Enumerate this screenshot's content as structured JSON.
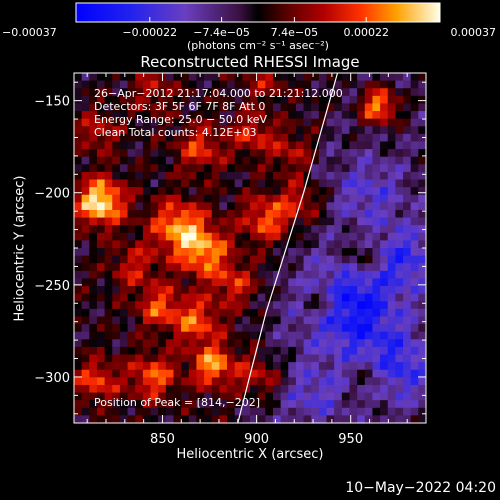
{
  "chart_data": {
    "type": "heatmap",
    "title": "Reconstructed RHESSI Image",
    "xlabel": "Heliocentric X (arcsec)",
    "ylabel": "Heliocentric Y (arcsec)",
    "xlim": [
      803,
      990
    ],
    "ylim": [
      -325,
      -135
    ],
    "xticks": [
      850,
      900,
      950
    ],
    "xtick_labels": [
      "850",
      "900",
      "950"
    ],
    "yticks": [
      -150,
      -200,
      -250,
      -300
    ],
    "ytick_labels": [
      "−150",
      "−200",
      "−250",
      "−300"
    ],
    "colorbar": {
      "range": [
        -0.00037,
        0.00037
      ],
      "ticks": [
        -0.00037,
        -0.00022,
        -7.4e-05,
        7.4e-05,
        0.00022,
        0.00037
      ],
      "tick_labels": [
        "−0.00037",
        "−0.00022",
        "−7.4e−05",
        "7.4e−05",
        "0.00022",
        "0.00037"
      ],
      "unit_label": "(photons cm⁻² s⁻¹ asec⁻²)"
    },
    "annotations": {
      "time_range": "26−Apr−2012 21:17:04.000 to 21:21:12.000",
      "detectors": "Detectors: 3F 5F 6F 7F 8F  Att 0",
      "energy": "Energy Range: 25.0 − 50.0 keV",
      "clean": "Clean    Total counts: 4.12E+03",
      "peak": "Position of Peak = [814,−202]"
    },
    "limb": [
      [
        943,
        -135
      ],
      [
        925,
        -200
      ],
      [
        905,
        -265
      ],
      [
        890,
        -325
      ]
    ],
    "peaks": [
      {
        "x": 817,
        "y": -205,
        "a": 1.0,
        "s": 9
      },
      {
        "x": 858,
        "y": -218,
        "a": 0.72,
        "s": 10
      },
      {
        "x": 872,
        "y": -232,
        "a": 0.72,
        "s": 10
      },
      {
        "x": 905,
        "y": -214,
        "a": 0.6,
        "s": 9
      },
      {
        "x": 925,
        "y": -205,
        "a": 0.45,
        "s": 8
      },
      {
        "x": 870,
        "y": -176,
        "a": 0.5,
        "s": 9
      },
      {
        "x": 898,
        "y": -168,
        "a": 0.45,
        "s": 8
      },
      {
        "x": 816,
        "y": -167,
        "a": 0.4,
        "s": 8
      },
      {
        "x": 845,
        "y": -145,
        "a": 0.35,
        "s": 8
      },
      {
        "x": 905,
        "y": -140,
        "a": 0.3,
        "s": 8
      },
      {
        "x": 965,
        "y": -153,
        "a": 0.85,
        "s": 7
      },
      {
        "x": 956,
        "y": -235,
        "a": 0.4,
        "s": 7
      },
      {
        "x": 935,
        "y": -260,
        "a": 0.45,
        "s": 7
      },
      {
        "x": 960,
        "y": -300,
        "a": 0.3,
        "s": 7
      },
      {
        "x": 868,
        "y": -270,
        "a": 0.6,
        "s": 9
      },
      {
        "x": 848,
        "y": -262,
        "a": 0.55,
        "s": 8
      },
      {
        "x": 845,
        "y": -300,
        "a": 0.6,
        "s": 9
      },
      {
        "x": 877,
        "y": -294,
        "a": 0.75,
        "s": 8
      },
      {
        "x": 815,
        "y": -302,
        "a": 0.55,
        "s": 8
      },
      {
        "x": 902,
        "y": -300,
        "a": 0.5,
        "s": 8
      },
      {
        "x": 835,
        "y": -240,
        "a": 0.4,
        "s": 9
      },
      {
        "x": 888,
        "y": -250,
        "a": 0.45,
        "s": 8
      },
      {
        "x": 918,
        "y": -178,
        "a": 0.35,
        "s": 8
      }
    ],
    "troughs": [
      {
        "x": 950,
        "y": -262,
        "a": -0.75,
        "s": 18
      },
      {
        "x": 975,
        "y": -295,
        "a": -0.5,
        "s": 14
      },
      {
        "x": 960,
        "y": -200,
        "a": -0.35,
        "s": 14
      },
      {
        "x": 930,
        "y": -310,
        "a": -0.35,
        "s": 12
      },
      {
        "x": 980,
        "y": -235,
        "a": -0.45,
        "s": 12
      }
    ]
  },
  "footer": {
    "date": "10−May−2022 04:20"
  }
}
